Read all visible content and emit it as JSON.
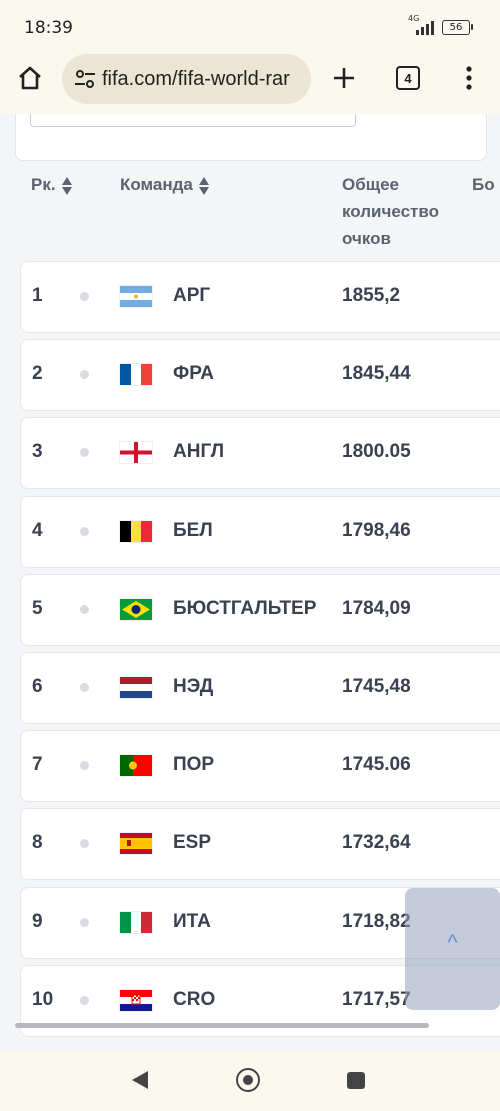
{
  "status": {
    "time": "18:39",
    "network": "4G",
    "battery": "56"
  },
  "browser": {
    "url": "fifa.com/fifa-world-rar",
    "tab_count": "4"
  },
  "table": {
    "headers": {
      "rank": "Рк.",
      "team": "Команда",
      "points": "Общее количество очков",
      "next": "Бо"
    },
    "rows": [
      {
        "rank": "1",
        "team": "АРГ",
        "points": "1855,2",
        "flag": "argentina"
      },
      {
        "rank": "2",
        "team": "ФРА",
        "points": "1845,44",
        "flag": "france"
      },
      {
        "rank": "3",
        "team": "АНГЛ",
        "points": "1800.05",
        "flag": "england"
      },
      {
        "rank": "4",
        "team": "БЕЛ",
        "points": "1798,46",
        "flag": "belgium"
      },
      {
        "rank": "5",
        "team": "БЮСТГАЛЬТЕР",
        "points": "1784,09",
        "flag": "brazil"
      },
      {
        "rank": "6",
        "team": "НЭД",
        "points": "1745,48",
        "flag": "netherlands"
      },
      {
        "rank": "7",
        "team": "ПОР",
        "points": "1745.06",
        "flag": "portugal"
      },
      {
        "rank": "8",
        "team": "ESP",
        "points": "1732,64",
        "flag": "spain"
      },
      {
        "rank": "9",
        "team": "ИТА",
        "points": "1718,82",
        "flag": "italy"
      },
      {
        "rank": "10",
        "team": "CRO",
        "points": "1717,57",
        "flag": "croatia"
      }
    ]
  },
  "scroll_top_label": "^"
}
